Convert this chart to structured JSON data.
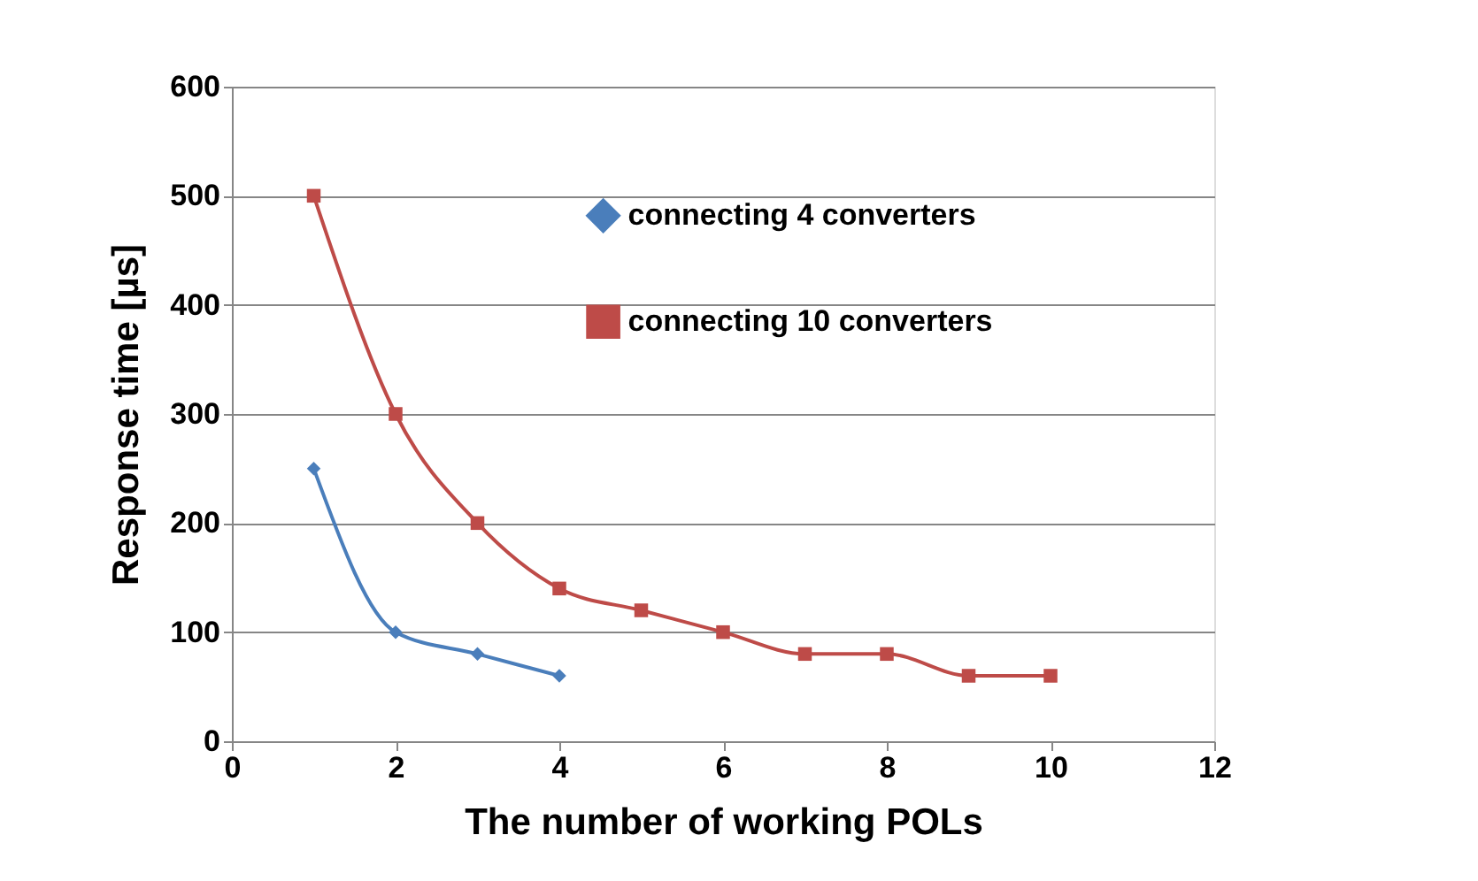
{
  "chart_data": {
    "type": "line",
    "xlabel": "The number of working POLs",
    "ylabel": "Response time [µs]",
    "series": [
      {
        "name": "connecting 4 converters",
        "color": "#4a7ebb",
        "marker": "diamond",
        "x": [
          1,
          2,
          3,
          4
        ],
        "values": [
          250,
          100,
          80,
          60
        ]
      },
      {
        "name": "connecting 10 converters",
        "color": "#be4b48",
        "marker": "square",
        "x": [
          1,
          2,
          3,
          4,
          5,
          6,
          7,
          8,
          9,
          10
        ],
        "values": [
          500,
          300,
          200,
          140,
          120,
          100,
          80,
          80,
          60,
          60
        ]
      }
    ],
    "xlim": [
      0,
      12
    ],
    "xticks": [
      0,
      2,
      4,
      6,
      8,
      10,
      12
    ],
    "ylim": [
      0,
      600
    ],
    "yticks": [
      0,
      100,
      200,
      300,
      400,
      500,
      600
    ],
    "grid": "y",
    "legend": "top right",
    "line_style": "solid"
  }
}
